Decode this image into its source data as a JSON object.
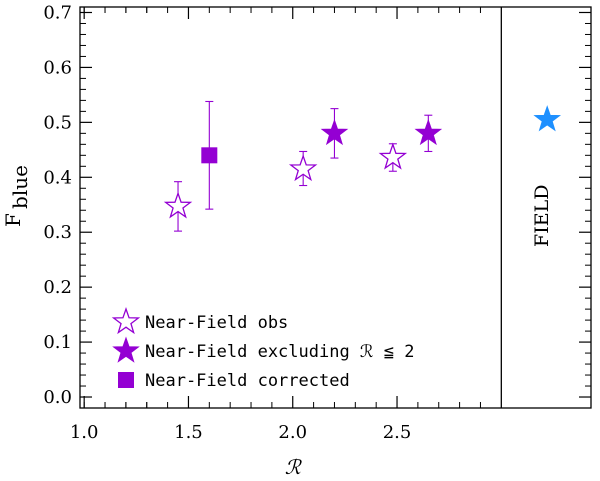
{
  "chart_data": {
    "type": "scatter",
    "title": "",
    "xlabel": "ℛ",
    "ylabel": "F",
    "ylabel_subscript": "blue",
    "xlim": [
      0.98,
      3.0
    ],
    "xlim_full": [
      0.98,
      3.43
    ],
    "ylim": [
      -0.02,
      0.71
    ],
    "xticks": [
      1.0,
      1.5,
      2.0,
      2.5
    ],
    "xtick_labels": [
      "1.0",
      "1.5",
      "2.0",
      "2.5"
    ],
    "yticks": [
      0.0,
      0.1,
      0.2,
      0.3,
      0.4,
      0.5,
      0.6,
      0.7
    ],
    "ytick_labels": [
      "0.0",
      "0.1",
      "0.2",
      "0.3",
      "0.4",
      "0.5",
      "0.6",
      "0.7"
    ],
    "divider_x": 3.0,
    "field_label": "FIELD",
    "legend_position": "bottom-left",
    "colors": {
      "purple": "#9400D3",
      "field": "#1E90FF",
      "axis": "#000000"
    },
    "series": [
      {
        "name": "Near-Field obs",
        "marker": "open-star",
        "points": [
          {
            "x": 1.45,
            "y": 0.347,
            "err_low": 0.045,
            "err_high": 0.045
          },
          {
            "x": 2.05,
            "y": 0.415,
            "err_low": 0.03,
            "err_high": 0.032
          },
          {
            "x": 2.48,
            "y": 0.436,
            "err_low": 0.025,
            "err_high": 0.025
          }
        ]
      },
      {
        "name": "Near-Field excluding ℛ ≦ 2",
        "marker": "filled-star",
        "points": [
          {
            "x": 2.2,
            "y": 0.48,
            "err_low": 0.045,
            "err_high": 0.045
          },
          {
            "x": 2.65,
            "y": 0.48,
            "err_low": 0.033,
            "err_high": 0.033
          }
        ]
      },
      {
        "name": "Near-Field corrected",
        "marker": "filled-square",
        "points": [
          {
            "x": 1.6,
            "y": 0.44,
            "err_low": 0.098,
            "err_high": 0.098
          }
        ]
      },
      {
        "name": "FIELD",
        "marker": "filled-star-blue",
        "points": [
          {
            "x": 3.22,
            "y": 0.505
          }
        ]
      }
    ],
    "legend": [
      {
        "label": "Near-Field obs",
        "marker": "open-star"
      },
      {
        "label": "Near-Field excluding ℛ ≦ 2",
        "marker": "filled-star"
      },
      {
        "label": "Near-Field corrected",
        "marker": "filled-square"
      }
    ]
  }
}
